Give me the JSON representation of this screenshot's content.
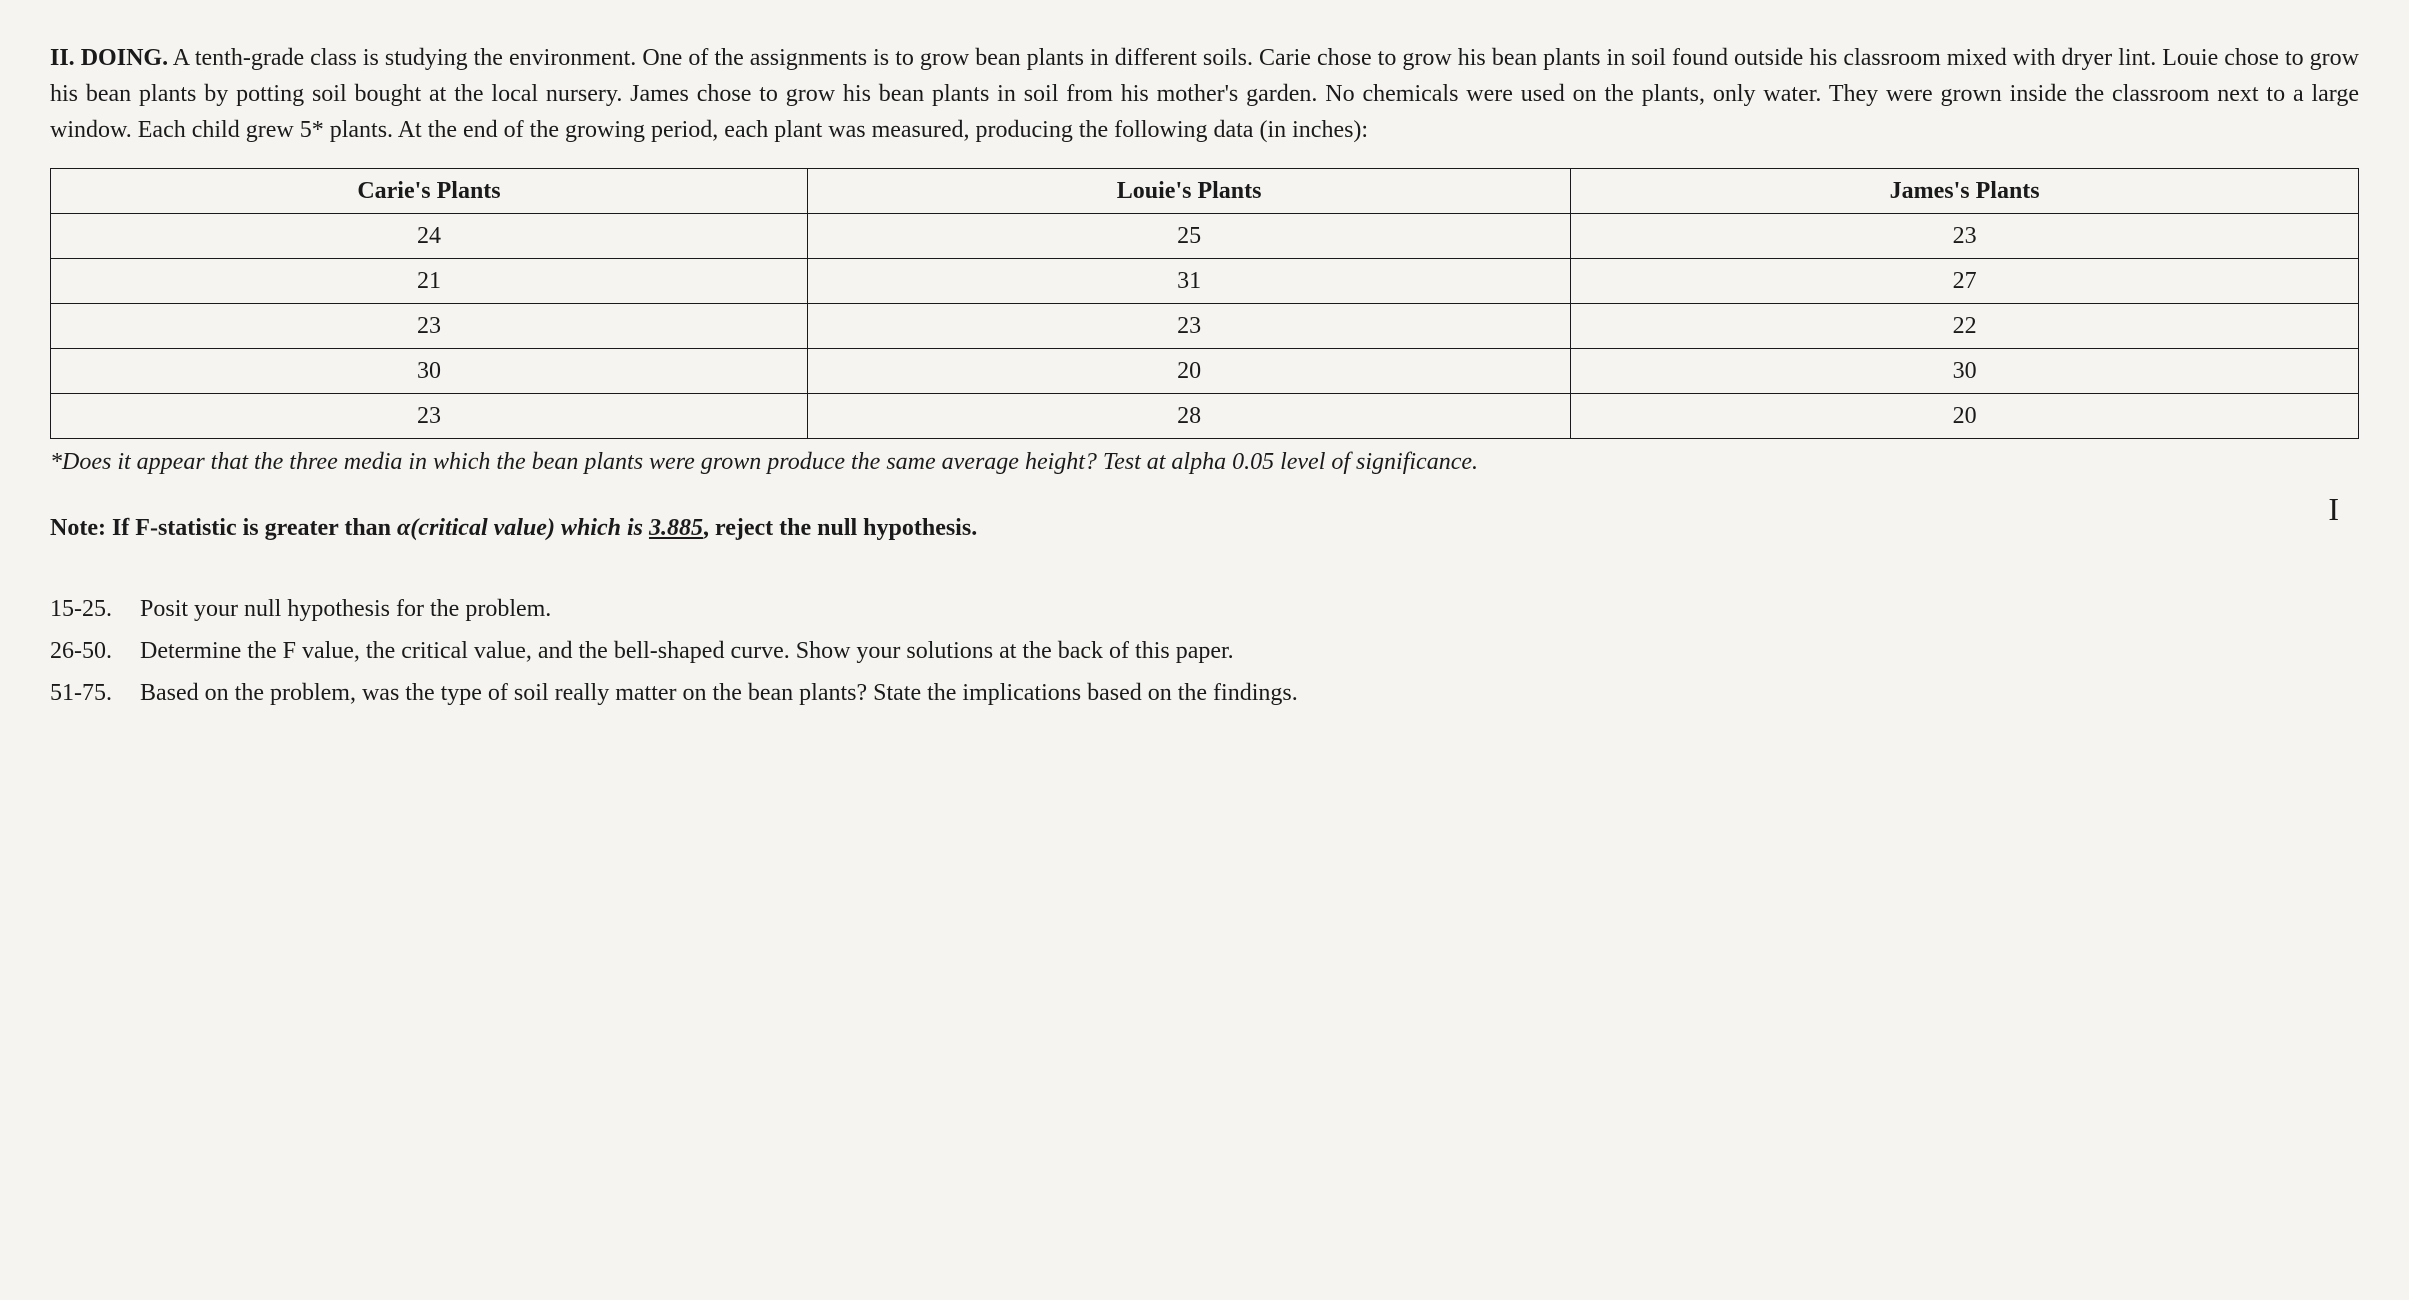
{
  "intro": {
    "heading": "II. DOING.",
    "body": " A tenth-grade class is studying the environment. One of the assignments is to grow bean plants in different soils. Carie chose to grow his bean plants in soil found outside his classroom mixed with dryer lint. Louie chose to grow his bean plants by potting soil bought at the local nursery. James chose to grow his bean plants in soil from his mother's garden. No chemicals were used on the plants, only water. They were grown inside the classroom next to a large window. Each child grew 5* plants. At the end of the growing period, each plant was measured, producing the following data (in inches):"
  },
  "table": {
    "columns": [
      "Carie's Plants",
      "Louie's Plants",
      "James's Plants"
    ],
    "rows": [
      [
        "24",
        "25",
        "23"
      ],
      [
        "21",
        "31",
        "27"
      ],
      [
        "23",
        "23",
        "22"
      ],
      [
        "30",
        "20",
        "30"
      ],
      [
        "23",
        "28",
        "20"
      ]
    ],
    "border_color": "#1a1a1a",
    "header_fontweight": "bold",
    "cell_align": "center"
  },
  "question": "*Does it appear that the three media in which the bean plants were grown produce the same average height? Test at alpha 0.05 level of significance.",
  "note": {
    "prefix": "Note: If F-statistic is greater than ",
    "italic_part": "α(critical value) which is ",
    "critical_value": "3.885",
    "suffix": ", reject the null hypothesis."
  },
  "roman_marker": "I",
  "tasks": [
    {
      "num": "15-25.",
      "text": "Posit your null hypothesis for the problem."
    },
    {
      "num": "26-50.",
      "text": "Determine the F value, the critical value, and the bell-shaped curve. Show your solutions at the back of this paper."
    },
    {
      "num": "51-75.",
      "text": "Based on the problem, was the type of soil really matter on the bean plants? State the implications based on the findings."
    }
  ],
  "colors": {
    "background": "#f5f4f0",
    "text": "#1a1a1a"
  },
  "typography": {
    "body_fontsize": 24,
    "font_family": "Georgia, Times New Roman, serif"
  }
}
